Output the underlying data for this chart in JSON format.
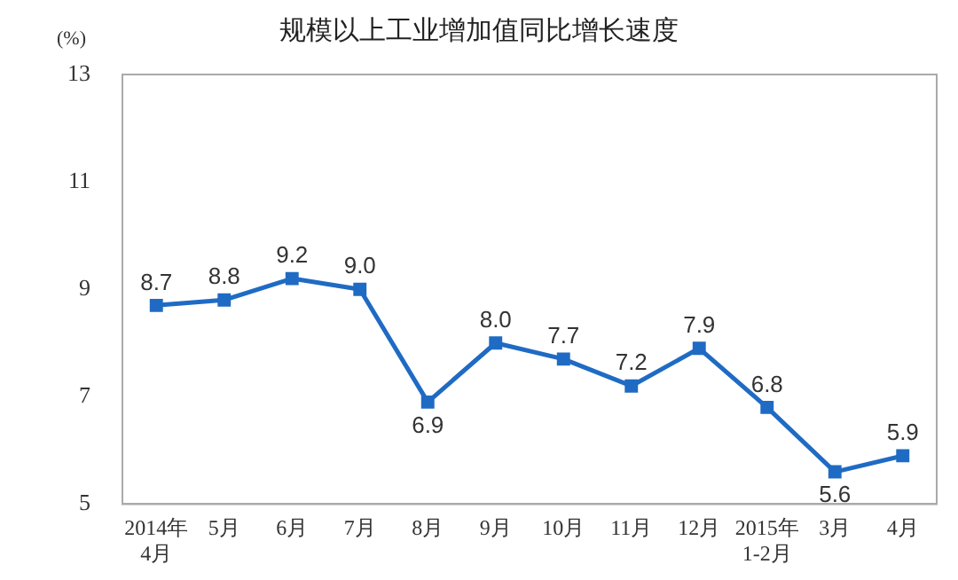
{
  "chart_data": {
    "type": "line",
    "title": "规模以上工业增加值同比增长速度",
    "ylabel": "(%)",
    "categories": [
      "2014年\n4月",
      "5月",
      "6月",
      "7月",
      "8月",
      "9月",
      "10月",
      "11月",
      "12月",
      "2015年\n1-2月",
      "3月",
      "4月"
    ],
    "series": [
      {
        "color": "#1f6bc4",
        "values": [
          8.7,
          8.8,
          9.2,
          9.0,
          6.9,
          8.0,
          7.7,
          7.2,
          7.9,
          6.8,
          5.6,
          5.9
        ],
        "value_labels": [
          "8.7",
          "8.8",
          "9.2",
          "9.0",
          "6.9",
          "8.0",
          "7.7",
          "7.2",
          "7.9",
          "6.8",
          "5.6",
          "5.9"
        ]
      }
    ],
    "ylim": [
      5,
      13
    ],
    "yticks": [
      5,
      7,
      9,
      11,
      13
    ],
    "grid": false,
    "legend": false,
    "marker": "square",
    "line_style": "solid"
  }
}
